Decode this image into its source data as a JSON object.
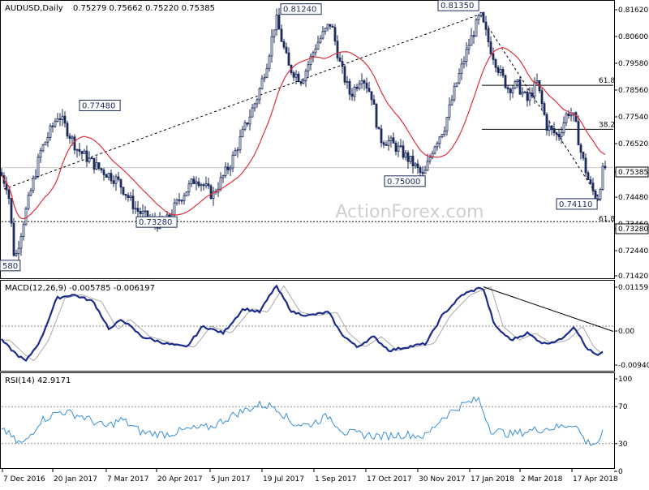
{
  "chart_data": {
    "type": "candlestick",
    "title": "AUDUSD,Daily",
    "ohlc_header": "0.75279 0.75662 0.75220 0.75385",
    "watermark": "ActionForex.com",
    "x_labels": [
      "7 Dec 2016",
      "20 Jan 2017",
      "7 Mar 2017",
      "20 Apr 2017",
      "5 Jun 2017",
      "19 Jul 2017",
      "1 Sep 2017",
      "17 Oct 2017",
      "30 Nov 2017",
      "17 Jan 2018",
      "2 Mar 2018",
      "17 Apr 2018"
    ],
    "price_panel": {
      "y_range": [
        0.711,
        0.818
      ],
      "y_ticks": [
        "0.81620",
        "0.80600",
        "0.79580",
        "0.78560",
        "0.77540",
        "0.76520",
        "0.75385",
        "0.74480",
        "0.73460",
        "0.73280",
        "0.72440",
        "0.71420"
      ],
      "current_price": "0.75385",
      "level_labels": [
        {
          "text": "0.81240",
          "price": 0.8124
        },
        {
          "text": "0.81350",
          "price": 0.8135
        },
        {
          "text": "0.77480",
          "price": 0.7748
        },
        {
          "text": "0.75000",
          "price": 0.75
        },
        {
          "text": "0.74110",
          "price": 0.7411
        },
        {
          "text": "0.73280",
          "price": 0.7328
        },
        {
          "text": "580",
          "price": 0.7158
        }
      ],
      "fib_labels": [
        {
          "text": "61.8",
          "price": 0.786
        },
        {
          "text": "38.2",
          "price": 0.7688
        },
        {
          "text": "61.8",
          "price": 0.7336
        }
      ]
    },
    "macd_panel": {
      "label": "MACD(12,26,9) -0.005785 -0.006197",
      "y_ticks": [
        "0.01159",
        "0.00",
        "-0.009408"
      ],
      "y_range": [
        -0.0125,
        0.0125
      ]
    },
    "rsi_panel": {
      "label": "RSI(14) 42.9171",
      "y_ticks": [
        "100",
        "70",
        "30",
        "0"
      ],
      "y_range": [
        0,
        100
      ]
    },
    "colors": {
      "candle": "#1a2a5a",
      "ma": "#e0303a",
      "macd_line": "#1c2c8c",
      "signal_line": "#a8a8a8",
      "rsi_line": "#3a8fd6",
      "grid_dotted": "#888888"
    }
  }
}
